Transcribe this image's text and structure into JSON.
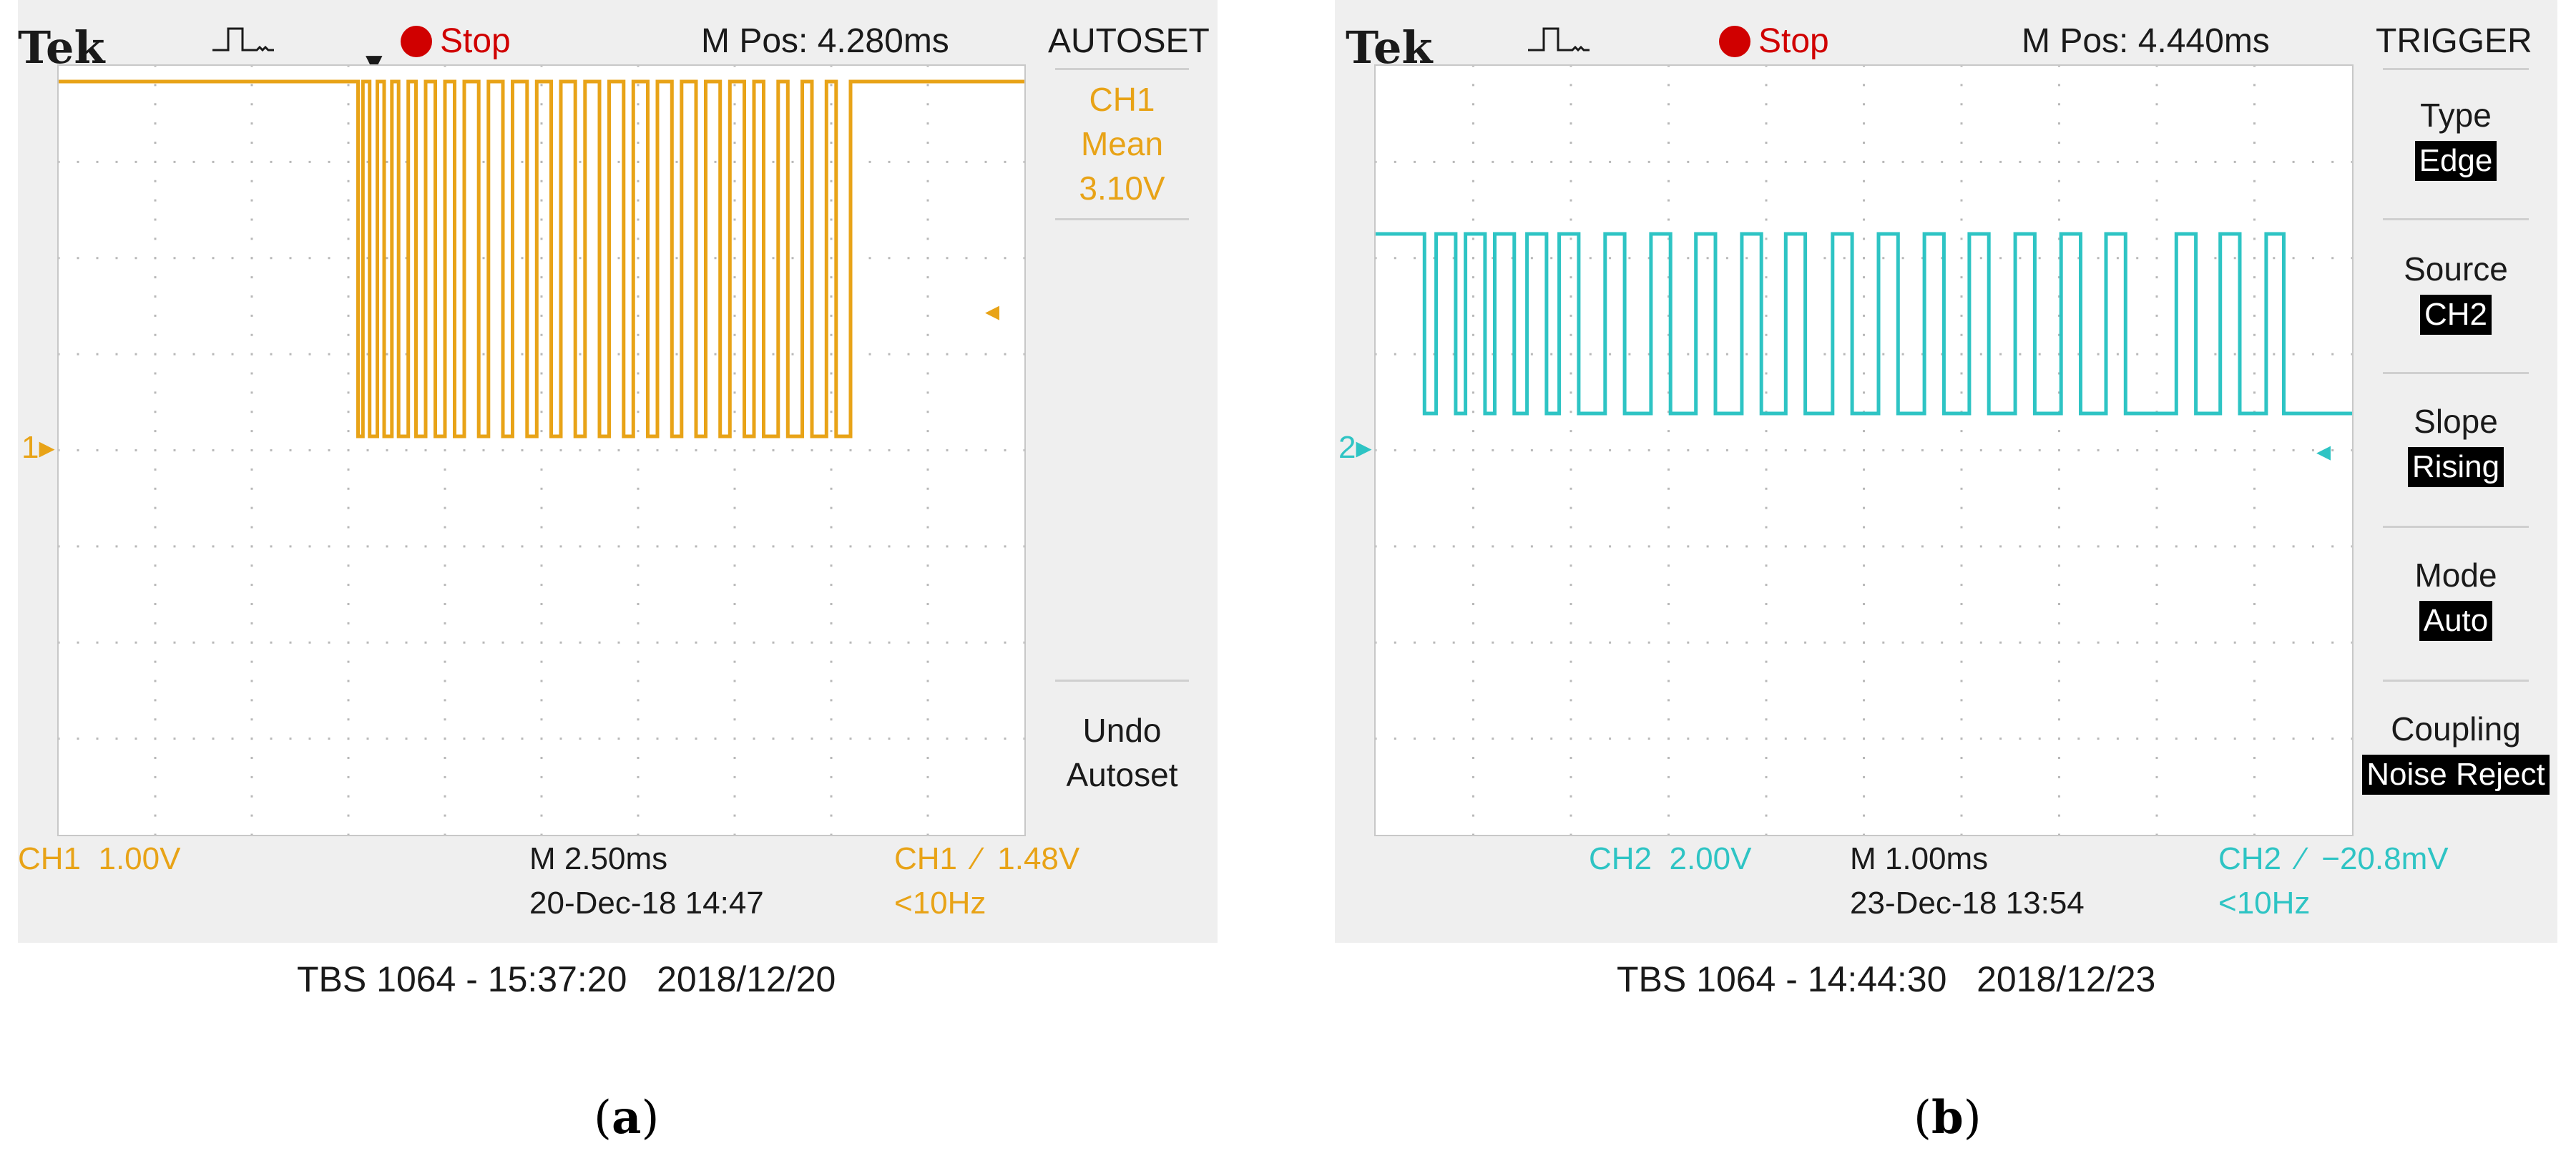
{
  "panels": [
    {
      "id": "a",
      "brand": "Tek",
      "state": "Stop",
      "mpos": "M Pos: 4.280ms",
      "menu_title": "AUTOSET",
      "menu_items": [
        {
          "lines": [
            "CH1",
            "Mean",
            "3.10V"
          ]
        },
        {
          "lines": [
            "Undo",
            "Autoset"
          ]
        }
      ],
      "channel_scale": "CH1  1.00V",
      "timebase": "M 2.50ms",
      "date_time": "20-Dec-18 14:47",
      "trigger": "CH1  ∕  1.48V",
      "trigger_freq": "<10Hz",
      "caption": "TBS 1064 - 15:37:20   2018/12/20",
      "label": "a",
      "ground_marker": "1",
      "color": "#e8a317",
      "chart_data": {
        "type": "line",
        "series": [
          {
            "x_divisions": [
              0.0,
              3.1,
              3.1,
              3.15,
              3.15,
              3.22,
              3.22,
              3.3,
              3.3,
              3.37,
              3.37,
              3.45,
              3.45,
              3.52,
              3.52,
              3.62,
              3.62,
              3.7,
              3.7,
              3.8,
              3.8,
              3.9,
              3.9,
              4.0,
              4.0,
              4.1,
              4.1,
              4.2,
              4.2,
              4.35,
              4.35,
              4.45,
              4.45,
              4.6,
              4.6,
              4.7,
              4.7,
              4.85,
              4.85,
              4.95,
              4.95,
              5.1,
              5.1,
              5.2,
              5.2,
              5.35,
              5.35,
              5.45,
              5.45,
              5.6,
              5.6,
              5.7,
              5.7,
              5.85,
              5.85,
              5.95,
              5.95,
              6.1,
              6.1,
              6.2,
              6.2,
              6.35,
              6.35,
              6.45,
              6.45,
              6.6,
              6.6,
              6.7,
              6.7,
              6.85,
              6.85,
              6.95,
              6.95,
              7.1,
              7.1,
              7.2,
              7.2,
              7.3,
              7.3,
              7.45,
              7.45,
              7.55,
              7.55,
              7.7,
              7.7,
              7.8,
              7.8,
              7.95,
              7.95,
              8.05,
              8.05,
              8.2,
              8.2,
              8.35,
              8.35,
              10.0
            ],
            "level": [
              1,
              1,
              0,
              0,
              1,
              1,
              0,
              0,
              1,
              1,
              0,
              0,
              1,
              1,
              0,
              0,
              1,
              1,
              0,
              0,
              1,
              1,
              0,
              0,
              1,
              1,
              0,
              0,
              1,
              1,
              0,
              0,
              1,
              1,
              0,
              0,
              1,
              1,
              0,
              0,
              1,
              1,
              0,
              0,
              1,
              1,
              0,
              0,
              1,
              1,
              0,
              0,
              1,
              1,
              0,
              0,
              1,
              1,
              0,
              0,
              1,
              1,
              0,
              0,
              1,
              1,
              0,
              0,
              1,
              1,
              0,
              0,
              1,
              1,
              0,
              0,
              1,
              1,
              0,
              0,
              1,
              1,
              0,
              0,
              1,
              1,
              0,
              0,
              1,
              1,
              0,
              0,
              1,
              1,
              1,
              1
            ]
          }
        ],
        "grid": true
      }
    },
    {
      "id": "b",
      "brand": "Tek",
      "state": "Stop",
      "mpos": "M Pos: 4.440ms",
      "menu_title": "TRIGGER",
      "menu_items": [
        {
          "lines": [
            "Type"
          ],
          "value": "Edge"
        },
        {
          "lines": [
            "Source"
          ],
          "value": "CH2"
        },
        {
          "lines": [
            "Slope"
          ],
          "value": "Rising"
        },
        {
          "lines": [
            "Mode"
          ],
          "value": "Auto"
        },
        {
          "lines": [
            "Coupling"
          ],
          "value": "Noise Reject"
        }
      ],
      "channel_scale": "CH2  2.00V",
      "timebase": "M 1.00ms",
      "date_time": "23-Dec-18 13:54",
      "trigger": "CH2  ∕  −20.8mV",
      "trigger_freq": "<10Hz",
      "caption": "TBS 1064 - 14:44:30   2018/12/23",
      "label": "b",
      "ground_marker": "2",
      "color": "#2ec4c4",
      "chart_data": {
        "type": "line",
        "series": [
          {
            "x_divisions": [
              0.0,
              0.5,
              0.5,
              0.62,
              0.62,
              0.82,
              0.82,
              0.92,
              0.92,
              1.12,
              1.12,
              1.22,
              1.22,
              1.42,
              1.42,
              1.55,
              1.55,
              1.75,
              1.75,
              1.88,
              1.88,
              2.08,
              2.08,
              2.35,
              2.35,
              2.55,
              2.55,
              2.82,
              2.82,
              3.02,
              3.02,
              3.28,
              3.28,
              3.48,
              3.48,
              3.75,
              3.75,
              3.95,
              3.95,
              4.2,
              4.2,
              4.4,
              4.4,
              4.68,
              4.68,
              4.88,
              4.88,
              5.15,
              5.15,
              5.35,
              5.35,
              5.62,
              5.62,
              5.82,
              5.82,
              6.08,
              6.08,
              6.28,
              6.28,
              6.55,
              6.55,
              6.75,
              6.75,
              7.02,
              7.02,
              7.22,
              7.22,
              7.48,
              7.48,
              7.68,
              7.68,
              8.2,
              8.2,
              8.4,
              8.4,
              8.65,
              8.65,
              8.85,
              8.85,
              9.12,
              9.12,
              9.3,
              9.3,
              10.0
            ],
            "level": [
              1,
              1,
              0,
              0,
              1,
              1,
              0,
              0,
              1,
              1,
              0,
              0,
              1,
              1,
              0,
              0,
              1,
              1,
              0,
              0,
              1,
              1,
              0,
              0,
              1,
              1,
              0,
              0,
              1,
              1,
              0,
              0,
              1,
              1,
              0,
              0,
              1,
              1,
              0,
              0,
              1,
              1,
              0,
              0,
              1,
              1,
              0,
              0,
              1,
              1,
              0,
              0,
              1,
              1,
              0,
              0,
              1,
              1,
              0,
              0,
              1,
              1,
              0,
              0,
              1,
              1,
              0,
              0,
              1,
              1,
              0,
              0,
              1,
              1,
              0,
              0,
              1,
              1,
              0,
              0,
              1,
              1,
              0,
              0
            ]
          }
        ],
        "grid": true
      }
    }
  ]
}
